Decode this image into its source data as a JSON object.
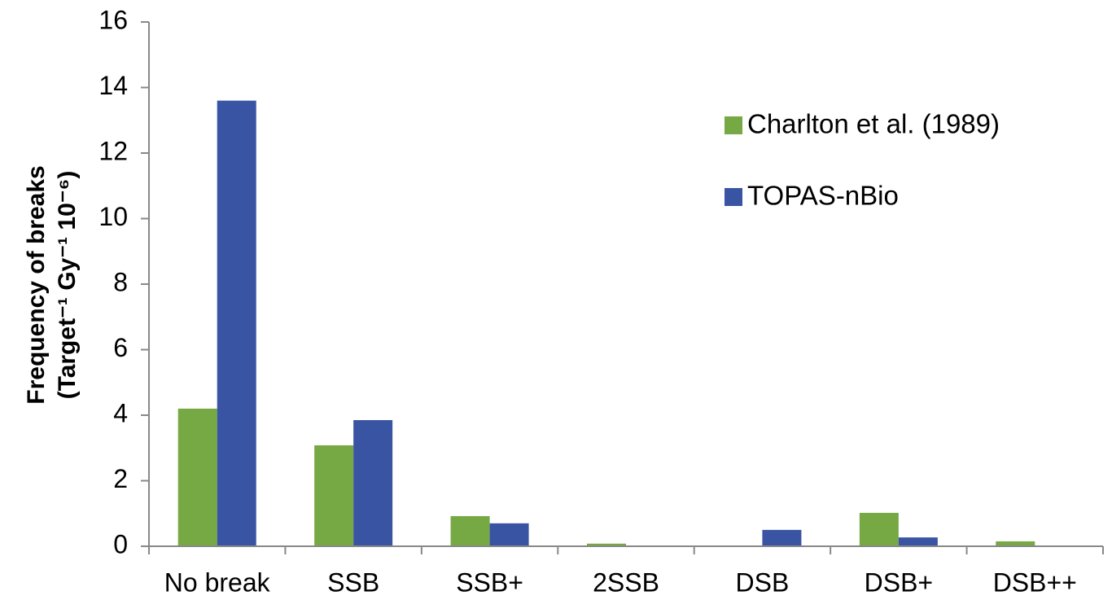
{
  "chart_data": {
    "type": "bar",
    "ylabel": [
      "Frequency of breaks",
      "(Target⁻¹ Gy⁻¹  10⁻⁶)"
    ],
    "categories": [
      "No break",
      "SSB",
      "SSB+",
      "2SSB",
      "DSB",
      "DSB+",
      "DSB++"
    ],
    "series": [
      {
        "name": "Charlton et al. (1989)",
        "color": "#76a843",
        "values": [
          4.2,
          3.08,
          0.92,
          0.08,
          0.02,
          1.02,
          0.15
        ]
      },
      {
        "name": "TOPAS-nBio",
        "color": "#3a54a4",
        "values": [
          13.6,
          3.85,
          0.7,
          0.02,
          0.5,
          0.27,
          0.02
        ]
      }
    ],
    "ylim": [
      0,
      16
    ],
    "yticks": [
      0,
      2,
      4,
      6,
      8,
      10,
      12,
      14,
      16
    ],
    "grid": false
  }
}
